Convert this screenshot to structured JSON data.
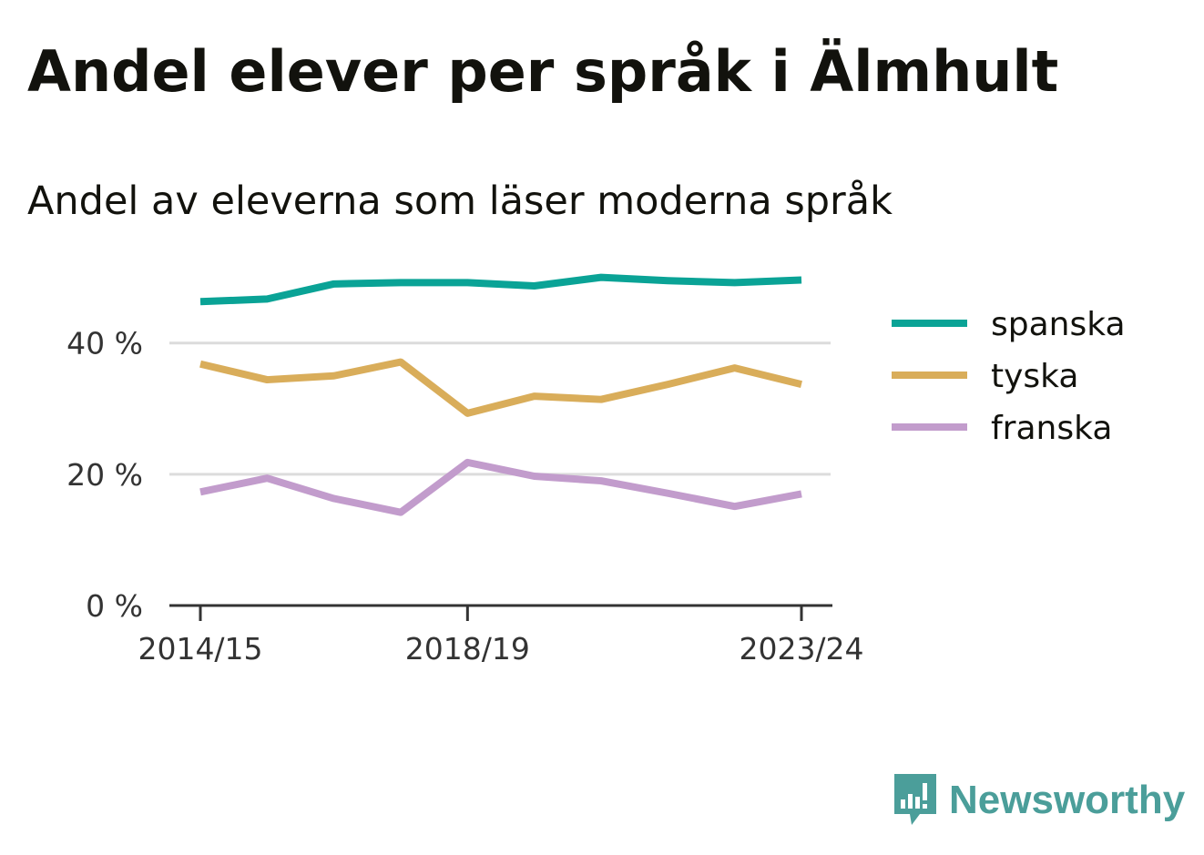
{
  "title": "Andel elever per språk i Älmhult",
  "subtitle": "Andel av eleverna som läser moderna språk",
  "brand": {
    "name": "Newsworthy",
    "color": "#4b9e9a",
    "icon": "newsworthy-logo-icon"
  },
  "colors": {
    "spanska": "#0aa396",
    "tyska": "#d9ad5a",
    "franska": "#c29ccc",
    "grid": "#dcdcdc",
    "axis": "#333333"
  },
  "chart_data": {
    "type": "line",
    "x": [
      "2014/15",
      "2015/16",
      "2016/17",
      "2017/18",
      "2018/19",
      "2019/20",
      "2020/21",
      "2021/22",
      "2022/23",
      "2023/24"
    ],
    "x_tick_labels": [
      "2014/15",
      "2018/19",
      "2023/24"
    ],
    "y_ticks": [
      0,
      20,
      40
    ],
    "y_tick_labels": [
      "0 %",
      "20 %",
      "40 %"
    ],
    "ylim": [
      0,
      53
    ],
    "grid": true,
    "legend": "right",
    "series": [
      {
        "name": "spanska",
        "values": [
          46.3,
          46.7,
          49.0,
          49.2,
          49.2,
          48.7,
          50.0,
          49.5,
          49.2,
          49.6
        ]
      },
      {
        "name": "tyska",
        "values": [
          36.8,
          34.4,
          35.0,
          37.1,
          29.3,
          31.9,
          31.4,
          33.7,
          36.2,
          33.7
        ]
      },
      {
        "name": "franska",
        "values": [
          17.3,
          19.4,
          16.3,
          14.2,
          21.8,
          19.7,
          19.0,
          17.1,
          15.1,
          17.0
        ]
      }
    ]
  }
}
